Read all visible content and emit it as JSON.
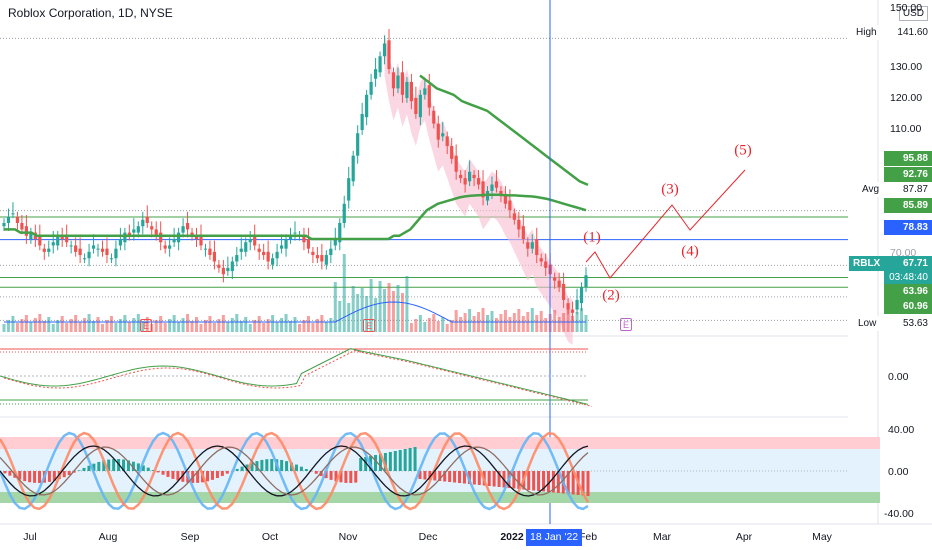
{
  "title": "Roblox Corporation, 1D, NYSE",
  "currency": "USD",
  "price_axis": {
    "ticks": [
      "150.00",
      "130.00",
      "120.00",
      "110.00",
      "70.00"
    ],
    "labels": {
      "high_tag": "High",
      "high_value": "141.60",
      "avg_tag": "Avg",
      "avg_value": "87.87",
      "low_tag": "Low",
      "low_value": "53.63",
      "level_95": "95.88",
      "level_92": "92.76",
      "level_85": "85.89",
      "level_78": "78.83",
      "symbol": "RBLX",
      "last_price": "67.71",
      "countdown": "03:48:40",
      "level_63": "63.96",
      "level_60": "60.96"
    }
  },
  "osc1_axis": {
    "zero": "0.00"
  },
  "osc2_axis": {
    "top": "40.00",
    "zero": "0.00",
    "bottom": "-40.00"
  },
  "time_axis": [
    "Jul",
    "Aug",
    "Sep",
    "Oct",
    "Nov",
    "Dec",
    "2022",
    "Feb",
    "Mar",
    "Apr",
    "May"
  ],
  "crosshair_date": "18 Jan '22",
  "waves": [
    "(1)",
    "(2)",
    "(3)",
    "(4)",
    "(5)"
  ],
  "earnings_badge": "E",
  "colors": {
    "up": "#26a69a",
    "down": "#ef5350",
    "ma": "#43a047",
    "crosshair": "#2962ff",
    "wave": "#e8252d",
    "band_pink": "#f8bbd0"
  },
  "chart_data": {
    "type": "candlestick",
    "ylim": [
      50,
      152
    ],
    "close_series": [
      84,
      86,
      87,
      84,
      82,
      80,
      81,
      79,
      77,
      75,
      76,
      78,
      80,
      79,
      78,
      77,
      75,
      74,
      73,
      75,
      77,
      76,
      75,
      74,
      73,
      76,
      79,
      81,
      80,
      82,
      83,
      85,
      84,
      82,
      80,
      78,
      76,
      77,
      79,
      81,
      83,
      82,
      80,
      79,
      77,
      76,
      74,
      72,
      70,
      68,
      70,
      72,
      74,
      76,
      78,
      79,
      77,
      75,
      74,
      72,
      73,
      75,
      77,
      79,
      80,
      81,
      80,
      78,
      76,
      74,
      73,
      72,
      74,
      76,
      79,
      84,
      90,
      98,
      105,
      112,
      118,
      124,
      128,
      132,
      136,
      140,
      132,
      126,
      130,
      124,
      128,
      122,
      118,
      124,
      126,
      120,
      115,
      110,
      112,
      108,
      104,
      100,
      98,
      96,
      100,
      98,
      96,
      92,
      94,
      96,
      95,
      93,
      90,
      88,
      85,
      82,
      79,
      76,
      78,
      74,
      72,
      70,
      68,
      66,
      64,
      60,
      57,
      56,
      60,
      64,
      67.71
    ],
    "ma_fast": [
      82,
      82,
      82,
      81,
      81,
      81,
      80,
      80,
      80,
      80,
      80,
      80,
      80,
      80,
      80,
      80,
      80,
      80,
      80,
      80,
      80,
      80,
      80,
      80,
      80,
      80,
      80,
      80,
      80,
      80,
      80,
      80,
      80,
      80,
      80,
      80,
      80,
      80,
      80,
      80,
      80,
      80,
      80,
      80,
      80,
      80,
      80,
      80,
      80,
      80,
      80,
      80,
      80,
      80,
      80,
      80,
      79,
      79,
      79,
      79,
      79,
      79,
      79,
      79,
      79,
      79,
      79,
      79,
      79,
      79,
      79,
      80,
      80,
      81,
      82,
      84,
      86,
      88,
      89,
      90,
      90.5,
      91,
      91.5,
      92,
      92.3,
      92.5,
      92.6,
      92.7,
      92.8,
      92.8,
      92.8,
      92.7,
      92.6,
      92.6,
      92.5,
      92.4,
      92.3,
      92.1,
      91.8,
      91.5,
      91,
      90.5,
      90,
      89.5,
      89,
      88.5,
      88
    ],
    "ma_slow": [
      130,
      128,
      126,
      125,
      124,
      122,
      121,
      120,
      119,
      117,
      115,
      113,
      111,
      109,
      107,
      105,
      103,
      101,
      99,
      97,
      95.88
    ],
    "volume_note": "volume histogram along bottom of price pane",
    "elliott_wave_projection": [
      "(1)",
      "(2)",
      "(3)",
      "(4)",
      "(5)"
    ],
    "high": 141.6,
    "avg": 87.87,
    "low": 53.63,
    "last": 67.71,
    "levels": [
      95.88,
      92.76,
      85.89,
      78.83,
      63.96,
      60.96
    ],
    "oscillator_1_range": [
      -20,
      20
    ],
    "oscillator_2_range": [
      -45,
      45
    ]
  }
}
